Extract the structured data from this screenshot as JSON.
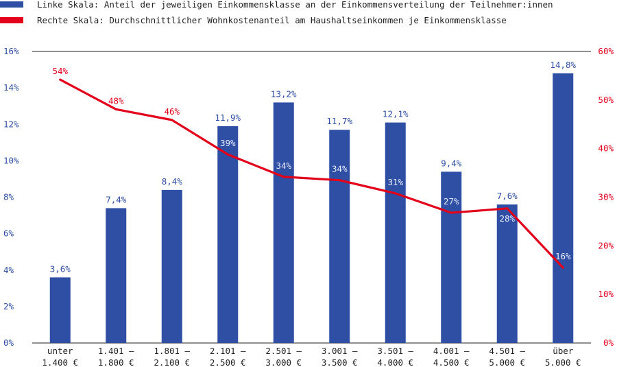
{
  "colors": {
    "bar": "#2e4fa3",
    "line": "#e2001a",
    "axis": "#222222",
    "text": "#222222",
    "inline_label": "#e8ecff"
  },
  "legend": [
    {
      "text": "Linke Skala: Anteil der jeweiligen Einkommensklasse an der Einkommensverteilung der Teilnehmer:innen",
      "color": "#2e4fa3"
    },
    {
      "text": "Rechte Skala: Durchschnittlicher Wohnkostenanteil am Haushaltseinkommen je Einkommensklasse",
      "color": "#e2001a"
    }
  ],
  "chart_data": {
    "type": "bar",
    "categories": [
      [
        "unter",
        "1.400 €"
      ],
      [
        "1.401 –",
        "1.800 €"
      ],
      [
        "1.801 –",
        "2.100 €"
      ],
      [
        "2.101 –",
        "2.500 €"
      ],
      [
        "2.501 –",
        "3.000 €"
      ],
      [
        "3.001 –",
        "3.500 €"
      ],
      [
        "3.501 –",
        "4.000 €"
      ],
      [
        "4.001 –",
        "4.500 €"
      ],
      [
        "4.501 –",
        "5.000 €"
      ],
      [
        "über",
        "5.000 €"
      ]
    ],
    "series": [
      {
        "type": "bar",
        "axis": "left",
        "color": "#2e4fa3",
        "values": [
          3.6,
          7.4,
          8.4,
          11.9,
          13.2,
          11.7,
          12.1,
          9.4,
          7.6,
          14.8
        ],
        "labels": [
          "3,6%",
          "7,4%",
          "8,4%",
          "11,9%",
          "13,2%",
          "11,7%",
          "12,1%",
          "9,4%",
          "7,6%",
          "14,8%"
        ]
      },
      {
        "type": "line",
        "axis": "right",
        "color": "#e2001a",
        "values": [
          54.2,
          48.1,
          45.9,
          38.8,
          34.2,
          33.5,
          30.8,
          26.8,
          27.7,
          15.5
        ],
        "labels": [
          "54%",
          "48%",
          "46%",
          "39%",
          "34%",
          "34%",
          "31%",
          "27%",
          "28%",
          "16%"
        ]
      }
    ],
    "y_left": {
      "ylim": [
        0,
        16
      ],
      "ticks": [
        "0%",
        "2%",
        "4%",
        "6%",
        "8%",
        "10%",
        "12%",
        "14%",
        "16%"
      ]
    },
    "y_right": {
      "ylim": [
        0,
        60
      ],
      "ticks": [
        "0%",
        "10%",
        "20%",
        "30%",
        "40%",
        "50%",
        "60%"
      ]
    },
    "grid": false,
    "legend_position": "top-left"
  }
}
